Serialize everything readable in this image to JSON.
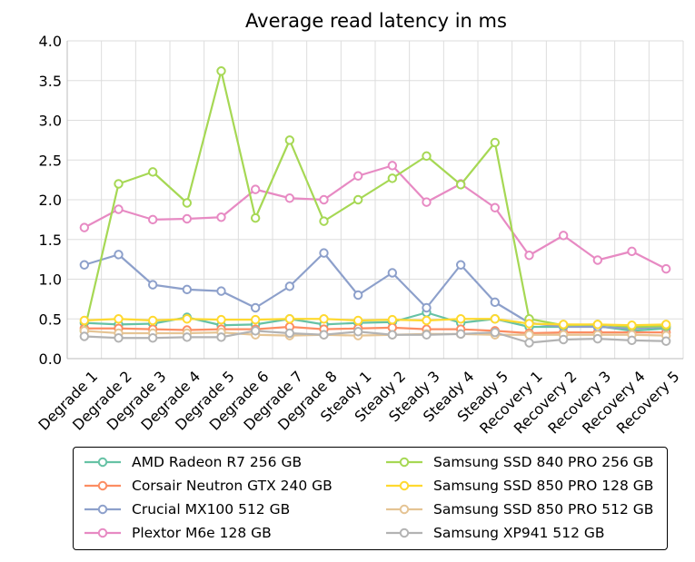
{
  "chart_data": {
    "type": "line",
    "title": "Average read latency in ms",
    "xlabel": "",
    "ylabel": "",
    "ylim": [
      0,
      4.0
    ],
    "yticks": [
      "0.0",
      "0.5",
      "1.0",
      "1.5",
      "2.0",
      "2.5",
      "3.0",
      "3.5",
      "4.0"
    ],
    "grid": true,
    "legend_position": "bottom",
    "categories": [
      "Degrade 1",
      "Degrade 2",
      "Degrade 3",
      "Degrade 4",
      "Degrade 5",
      "Degrade 6",
      "Degrade 7",
      "Degrade 8",
      "Steady 1",
      "Steady 2",
      "Steady 3",
      "Steady 4",
      "Steady 5",
      "Recovery 1",
      "Recovery 2",
      "Recovery 3",
      "Recovery 4",
      "Recovery 5"
    ],
    "series": [
      {
        "name": "AMD Radeon R7 256 GB",
        "color": "#66c2a5",
        "values": [
          0.45,
          0.43,
          0.44,
          0.52,
          0.42,
          0.43,
          0.5,
          0.43,
          0.45,
          0.46,
          0.58,
          0.45,
          0.5,
          0.4,
          0.4,
          0.41,
          0.35,
          0.38
        ]
      },
      {
        "name": "Corsair Neutron GTX 240 GB",
        "color": "#fc8d62",
        "values": [
          0.38,
          0.38,
          0.37,
          0.36,
          0.37,
          0.37,
          0.4,
          0.37,
          0.38,
          0.39,
          0.37,
          0.37,
          0.35,
          0.32,
          0.33,
          0.33,
          0.33,
          0.33
        ]
      },
      {
        "name": "Crucial MX100 512 GB",
        "color": "#8da0cb",
        "values": [
          1.18,
          1.31,
          0.93,
          0.87,
          0.85,
          0.64,
          0.91,
          1.33,
          0.8,
          1.08,
          0.64,
          1.18,
          0.71,
          0.45,
          0.4,
          0.4,
          0.38,
          0.4
        ]
      },
      {
        "name": "Plextor M6e 128 GB",
        "color": "#e78ac3",
        "values": [
          1.65,
          1.88,
          1.75,
          1.76,
          1.78,
          2.13,
          2.02,
          2.0,
          2.3,
          2.43,
          1.97,
          2.2,
          1.9,
          1.3,
          1.55,
          1.24,
          1.35,
          1.13
        ]
      },
      {
        "name": "Samsung SSD 840 PRO 256 GB",
        "color": "#a6d854",
        "values": [
          0.35,
          2.2,
          2.35,
          1.96,
          3.62,
          1.77,
          2.75,
          1.73,
          2.0,
          2.27,
          2.55,
          2.19,
          2.72,
          0.5,
          0.42,
          0.43,
          0.4,
          0.41
        ]
      },
      {
        "name": "Samsung SSD 850 PRO 128 GB",
        "color": "#ffd92f",
        "values": [
          0.48,
          0.5,
          0.48,
          0.5,
          0.49,
          0.49,
          0.5,
          0.5,
          0.48,
          0.49,
          0.48,
          0.5,
          0.5,
          0.44,
          0.43,
          0.43,
          0.42,
          0.43
        ]
      },
      {
        "name": "Samsung SSD 850 PRO 512 GB",
        "color": "#e5c494",
        "values": [
          0.35,
          0.32,
          0.32,
          0.32,
          0.33,
          0.3,
          0.29,
          0.3,
          0.29,
          0.3,
          0.31,
          0.31,
          0.3,
          0.3,
          0.3,
          0.3,
          0.3,
          0.29
        ]
      },
      {
        "name": "Samsung XP941 512 GB",
        "color": "#b3b3b3",
        "values": [
          0.28,
          0.26,
          0.26,
          0.27,
          0.27,
          0.35,
          0.32,
          0.3,
          0.34,
          0.3,
          0.3,
          0.31,
          0.33,
          0.2,
          0.24,
          0.25,
          0.23,
          0.22
        ]
      }
    ]
  }
}
